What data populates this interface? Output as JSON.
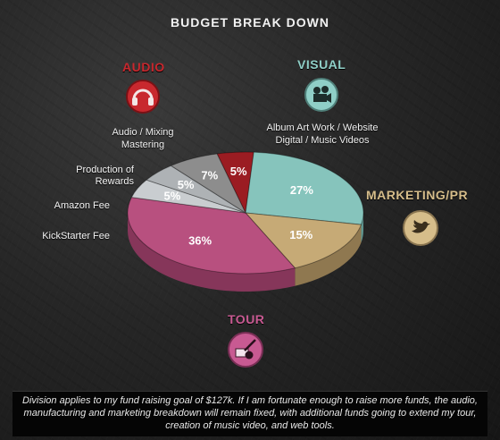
{
  "title": "BUDGET BREAK DOWN",
  "categories": {
    "audio": {
      "label": "AUDIO",
      "color": "#c8282e",
      "note_lines": [
        "Audio / Mixing",
        "Mastering"
      ],
      "icon": "headphones-icon"
    },
    "visual": {
      "label": "VISUAL",
      "color": "#8fcfc7",
      "note_lines": [
        "Album Art Work / Website",
        "Digital / Music Videos"
      ],
      "icon": "film-camera-icon"
    },
    "marketing": {
      "label": "MARKETING/PR",
      "color": "#d6bd8a",
      "icon": "twitter-bird-icon"
    },
    "tour": {
      "label": "TOUR",
      "color": "#c85a92",
      "icon": "guitar-ticket-icon"
    }
  },
  "side_labels": {
    "production": [
      "Production of",
      "Rewards"
    ],
    "amazon": "Amazon Fee",
    "kickstarter": "KickStarter Fee"
  },
  "footer_text": "Division applies to my fund raising goal of $127k. If I am fortunate enough to raise more funds, the audio, manufacturing and marketing breakdown will remain fixed, with additional funds going to extend my tour, creation of music video, and web tools.",
  "chart_data": {
    "type": "pie",
    "title": "BUDGET BREAK DOWN",
    "slices": [
      {
        "name": "Audio / Mixing Mastering",
        "value": 5,
        "label": "5%",
        "color": "#9b1c22",
        "side": "#6e1217"
      },
      {
        "name": "Album Art Work / Website Digital / Music Videos",
        "value": 27,
        "label": "27%",
        "color": "#86c4bc",
        "side": "#5e958f"
      },
      {
        "name": "Marketing/PR",
        "value": 15,
        "label": "15%",
        "color": "#c6aa76",
        "side": "#8f7850"
      },
      {
        "name": "Tour",
        "value": 36,
        "label": "36%",
        "color": "#b8507f",
        "side": "#86365a"
      },
      {
        "name": "KickStarter Fee",
        "value": 5,
        "label": "5%",
        "color": "#c9cdd0",
        "side": "#8f9396"
      },
      {
        "name": "Amazon Fee",
        "value": 5,
        "label": "5%",
        "color": "#aeb2b5",
        "side": "#7d8083"
      },
      {
        "name": "Production of Rewards",
        "value": 7,
        "label": "7%",
        "color": "#8d8d8d",
        "side": "#5f5f5f"
      }
    ],
    "start_angle_deg": -104
  }
}
